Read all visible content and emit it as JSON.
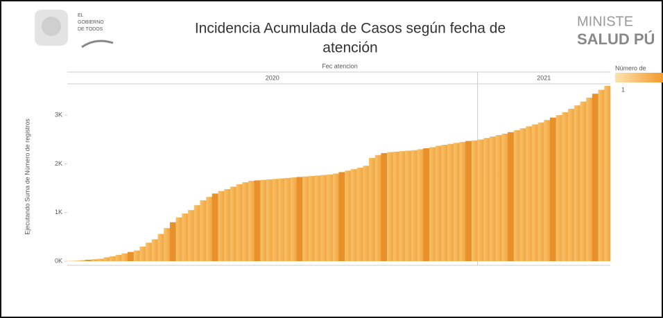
{
  "chart_data": {
    "type": "bar",
    "title_lines": [
      "Incidencia Acumulada de Casos según fecha de",
      "atención"
    ],
    "logo_text": [
      "EL",
      "GOBIERNO",
      "DE TODOS"
    ],
    "ministry_lines": [
      "MINISTE",
      "SALUD PÚ"
    ],
    "x_header": "Fec atencion",
    "y_label": "Ejecutando Suma de Número de registros",
    "legend_title": "Número de",
    "legend_min": "1",
    "color": "#f4ab3f",
    "groups": [
      {
        "label": "2020",
        "count": 68
      },
      {
        "label": "2021",
        "count": 22
      }
    ],
    "ylim": [
      0,
      3700
    ],
    "yticks": [
      {
        "value": 0,
        "label": "0K"
      },
      {
        "value": 1000,
        "label": "1K"
      },
      {
        "value": 2000,
        "label": "2K"
      },
      {
        "value": 3000,
        "label": "3K"
      }
    ],
    "values": [
      5,
      10,
      20,
      30,
      40,
      50,
      80,
      100,
      130,
      160,
      190,
      220,
      300,
      380,
      450,
      560,
      680,
      800,
      900,
      980,
      1050,
      1150,
      1250,
      1320,
      1390,
      1440,
      1480,
      1530,
      1580,
      1620,
      1650,
      1660,
      1670,
      1680,
      1690,
      1700,
      1710,
      1720,
      1730,
      1740,
      1750,
      1760,
      1770,
      1780,
      1800,
      1830,
      1860,
      1890,
      1920,
      1960,
      2120,
      2180,
      2220,
      2240,
      2250,
      2260,
      2270,
      2280,
      2300,
      2320,
      2340,
      2370,
      2390,
      2410,
      2430,
      2450,
      2470,
      2480,
      2500,
      2530,
      2560,
      2590,
      2620,
      2650,
      2690,
      2730,
      2770,
      2810,
      2850,
      2900,
      2950,
      3000,
      3060,
      3130,
      3200,
      3280,
      3360,
      3440,
      3520,
      3600
    ]
  }
}
